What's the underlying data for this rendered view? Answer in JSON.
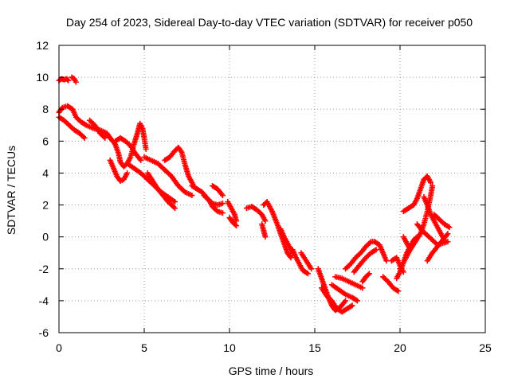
{
  "chart_data": {
    "type": "scatter",
    "title": "Day 254 of 2023, Sidereal Day-to-day VTEC variation (SDTVAR) for receiver p050",
    "xlabel": "GPS time / hours",
    "ylabel": "SDTVAR / TECUs",
    "xlim": [
      0,
      25
    ],
    "ylim": [
      -6,
      12
    ],
    "x_ticks": [
      0,
      5,
      10,
      15,
      20,
      25
    ],
    "x_tick_labels": [
      "0",
      "5",
      "10",
      "15",
      "20",
      "25"
    ],
    "y_ticks": [
      -6,
      -4,
      -2,
      0,
      2,
      4,
      6,
      8,
      10,
      12
    ],
    "y_tick_labels": [
      "-6",
      "-4",
      "-2",
      "0",
      "2",
      "4",
      "6",
      "8",
      "10",
      "12"
    ],
    "grid": true,
    "marker": "plus",
    "colors": {
      "series": "#ff0000",
      "grid": "#a0a0a0",
      "axis": "#000000"
    },
    "series": [
      {
        "name": "SDTVAR",
        "tracks": [
          [
            [
              0.0,
              9.8
            ],
            [
              0.15,
              9.9
            ],
            [
              0.3,
              9.85
            ],
            [
              0.45,
              9.9
            ],
            [
              0.55,
              9.8
            ]
          ],
          [
            [
              0.75,
              10.0
            ],
            [
              0.9,
              9.9
            ],
            [
              1.0,
              9.7
            ]
          ],
          [
            [
              0.0,
              7.8
            ],
            [
              0.2,
              8.1
            ],
            [
              0.5,
              8.2
            ],
            [
              0.8,
              8.0
            ],
            [
              1.0,
              7.5
            ],
            [
              1.3,
              7.2
            ],
            [
              1.6,
              7.0
            ],
            [
              2.0,
              6.8
            ],
            [
              2.4,
              6.7
            ],
            [
              2.8,
              6.5
            ],
            [
              3.0,
              6.2
            ]
          ],
          [
            [
              0.0,
              7.5
            ],
            [
              0.3,
              7.3
            ],
            [
              0.6,
              7.0
            ],
            [
              0.9,
              6.7
            ],
            [
              1.2,
              6.5
            ],
            [
              1.5,
              6.2
            ]
          ],
          [
            [
              1.8,
              7.3
            ],
            [
              2.1,
              7.0
            ],
            [
              2.4,
              6.5
            ],
            [
              2.7,
              6.2
            ]
          ],
          [
            [
              3.0,
              6.2
            ],
            [
              3.3,
              5.8
            ],
            [
              3.5,
              5.2
            ],
            [
              3.6,
              4.7
            ],
            [
              3.8,
              4.4
            ],
            [
              4.0,
              4.6
            ],
            [
              4.2,
              5.0
            ],
            [
              4.4,
              5.8
            ],
            [
              4.6,
              6.5
            ],
            [
              4.75,
              7.1
            ],
            [
              4.9,
              6.8
            ],
            [
              5.0,
              6.2
            ],
            [
              5.1,
              5.5
            ]
          ],
          [
            [
              3.0,
              4.8
            ],
            [
              3.2,
              4.3
            ],
            [
              3.4,
              3.8
            ],
            [
              3.6,
              3.5
            ],
            [
              3.8,
              3.6
            ],
            [
              4.0,
              4.0
            ]
          ],
          [
            [
              3.3,
              6.0
            ],
            [
              3.6,
              6.2
            ],
            [
              3.9,
              6.0
            ],
            [
              4.2,
              5.7
            ],
            [
              4.5,
              5.2
            ],
            [
              4.8,
              4.8
            ]
          ],
          [
            [
              4.0,
              4.6
            ],
            [
              4.4,
              4.3
            ],
            [
              4.8,
              4.0
            ],
            [
              5.2,
              3.6
            ],
            [
              5.6,
              3.2
            ],
            [
              6.0,
              2.8
            ],
            [
              6.4,
              2.5
            ],
            [
              6.8,
              2.2
            ]
          ],
          [
            [
              5.0,
              5.0
            ],
            [
              5.4,
              4.8
            ],
            [
              5.8,
              4.6
            ],
            [
              6.2,
              4.2
            ],
            [
              6.6,
              3.8
            ],
            [
              7.0,
              3.2
            ],
            [
              7.4,
              2.8
            ],
            [
              7.8,
              2.6
            ]
          ],
          [
            [
              5.2,
              4.0
            ],
            [
              5.5,
              3.5
            ],
            [
              5.8,
              3.0
            ],
            [
              6.1,
              2.6
            ],
            [
              6.4,
              2.2
            ],
            [
              6.8,
              1.8
            ]
          ],
          [
            [
              6.2,
              4.8
            ],
            [
              6.5,
              5.0
            ],
            [
              6.8,
              5.4
            ],
            [
              7.0,
              5.6
            ],
            [
              7.2,
              5.3
            ],
            [
              7.4,
              4.5
            ],
            [
              7.6,
              3.8
            ],
            [
              7.9,
              3.2
            ]
          ],
          [
            [
              7.8,
              3.2
            ],
            [
              8.1,
              3.0
            ],
            [
              8.4,
              2.8
            ],
            [
              8.7,
              2.4
            ],
            [
              9.0,
              2.1
            ],
            [
              9.3,
              2.0
            ],
            [
              9.6,
              2.1
            ]
          ],
          [
            [
              8.5,
              2.6
            ],
            [
              8.8,
              2.3
            ],
            [
              9.0,
              1.9
            ],
            [
              9.3,
              1.6
            ],
            [
              9.6,
              1.5
            ]
          ],
          [
            [
              9.0,
              3.2
            ],
            [
              9.3,
              3.0
            ],
            [
              9.6,
              2.6
            ]
          ],
          [
            [
              9.9,
              2.2
            ],
            [
              10.1,
              1.8
            ],
            [
              10.3,
              1.4
            ],
            [
              10.4,
              1.0
            ]
          ],
          [
            [
              10.0,
              1.2
            ],
            [
              10.2,
              0.9
            ],
            [
              10.4,
              0.7
            ]
          ],
          [
            [
              11.0,
              1.8
            ],
            [
              11.3,
              1.9
            ],
            [
              11.6,
              1.7
            ],
            [
              11.9,
              1.4
            ],
            [
              12.1,
              1.0
            ]
          ],
          [
            [
              11.9,
              0.8
            ],
            [
              12.0,
              0.4
            ],
            [
              12.1,
              0.0
            ]
          ],
          [
            [
              12.0,
              2.0
            ],
            [
              12.2,
              2.2
            ],
            [
              12.5,
              1.6
            ],
            [
              12.8,
              0.8
            ],
            [
              13.0,
              0.2
            ],
            [
              13.2,
              -0.4
            ],
            [
              13.4,
              -1.0
            ],
            [
              13.6,
              -1.3
            ]
          ],
          [
            [
              13.0,
              0.5
            ],
            [
              13.2,
              0.0
            ],
            [
              13.5,
              -0.6
            ],
            [
              13.7,
              -1.0
            ]
          ],
          [
            [
              13.7,
              -0.8
            ],
            [
              13.9,
              -1.3
            ],
            [
              14.1,
              -1.7
            ],
            [
              14.3,
              -2.1
            ],
            [
              14.6,
              -2.3
            ]
          ],
          [
            [
              14.2,
              -1.0
            ],
            [
              14.5,
              -1.5
            ],
            [
              14.8,
              -2.0
            ]
          ],
          [
            [
              15.2,
              -2.0
            ],
            [
              15.4,
              -2.6
            ],
            [
              15.6,
              -3.2
            ],
            [
              15.8,
              -3.8
            ],
            [
              16.0,
              -4.3
            ],
            [
              16.2,
              -4.6
            ],
            [
              16.5,
              -4.4
            ],
            [
              16.8,
              -4.0
            ]
          ],
          [
            [
              15.4,
              -3.2
            ],
            [
              15.7,
              -3.7
            ],
            [
              16.0,
              -4.0
            ],
            [
              16.3,
              -4.5
            ],
            [
              16.6,
              -4.7
            ],
            [
              16.9,
              -4.5
            ],
            [
              17.2,
              -4.3
            ]
          ],
          [
            [
              16.0,
              -3.0
            ],
            [
              16.4,
              -3.3
            ],
            [
              16.8,
              -3.6
            ],
            [
              17.2,
              -3.8
            ],
            [
              17.5,
              -4.0
            ]
          ],
          [
            [
              16.2,
              -2.5
            ],
            [
              16.6,
              -2.6
            ],
            [
              17.0,
              -2.8
            ],
            [
              17.4,
              -3.0
            ],
            [
              17.8,
              -3.2
            ]
          ],
          [
            [
              16.8,
              -2.0
            ],
            [
              17.1,
              -1.7
            ],
            [
              17.4,
              -1.3
            ],
            [
              17.7,
              -1.0
            ],
            [
              18.0,
              -0.6
            ],
            [
              18.3,
              -0.3
            ],
            [
              18.5,
              -0.3
            ],
            [
              18.8,
              -0.5
            ],
            [
              19.0,
              -1.0
            ],
            [
              19.2,
              -1.5
            ]
          ],
          [
            [
              17.3,
              -2.2
            ],
            [
              17.6,
              -1.8
            ],
            [
              18.0,
              -1.3
            ],
            [
              18.3,
              -1.0
            ],
            [
              18.6,
              -0.8
            ]
          ],
          [
            [
              17.8,
              -2.8
            ],
            [
              18.0,
              -2.5
            ],
            [
              18.2,
              -2.3
            ]
          ],
          [
            [
              19.0,
              -2.5
            ],
            [
              19.3,
              -2.8
            ],
            [
              19.6,
              -3.2
            ],
            [
              19.9,
              -3.4
            ]
          ],
          [
            [
              19.5,
              -1.5
            ],
            [
              19.8,
              -1.3
            ],
            [
              20.0,
              -1.8
            ],
            [
              20.2,
              -2.2
            ]
          ],
          [
            [
              19.8,
              -2.6
            ],
            [
              20.0,
              -2.2
            ],
            [
              20.2,
              -1.6
            ],
            [
              20.4,
              -1.0
            ],
            [
              20.6,
              -0.6
            ],
            [
              20.8,
              -0.2
            ],
            [
              21.0,
              0.0
            ]
          ],
          [
            [
              20.0,
              -2.0
            ],
            [
              20.3,
              -1.4
            ],
            [
              20.6,
              -0.8
            ],
            [
              20.9,
              -0.3
            ],
            [
              21.2,
              0.2
            ],
            [
              21.4,
              0.8
            ],
            [
              21.6,
              1.6
            ],
            [
              21.8,
              2.6
            ],
            [
              21.9,
              3.2
            ]
          ],
          [
            [
              20.2,
              1.6
            ],
            [
              20.5,
              1.8
            ],
            [
              20.8,
              2.0
            ],
            [
              21.0,
              2.4
            ],
            [
              21.2,
              3.0
            ],
            [
              21.4,
              3.6
            ],
            [
              21.6,
              3.8
            ],
            [
              21.8,
              3.4
            ]
          ],
          [
            [
              21.4,
              2.5
            ],
            [
              21.6,
              2.0
            ],
            [
              21.8,
              1.4
            ],
            [
              22.0,
              1.0
            ],
            [
              22.2,
              0.6
            ],
            [
              22.4,
              0.2
            ],
            [
              22.6,
              -0.2
            ]
          ],
          [
            [
              21.0,
              0.8
            ],
            [
              21.3,
              0.4
            ],
            [
              21.6,
              0.1
            ],
            [
              21.9,
              -0.2
            ],
            [
              22.2,
              -0.5
            ],
            [
              22.5,
              -0.4
            ],
            [
              22.8,
              -0.3
            ]
          ],
          [
            [
              22.0,
              1.4
            ],
            [
              22.3,
              1.1
            ],
            [
              22.6,
              0.8
            ],
            [
              22.9,
              0.6
            ]
          ],
          [
            [
              21.6,
              -1.5
            ],
            [
              21.9,
              -1.0
            ],
            [
              22.2,
              -0.6
            ],
            [
              22.5,
              -0.2
            ],
            [
              22.8,
              0.2
            ]
          ],
          [
            [
              20.2,
              0.0
            ],
            [
              20.4,
              -0.4
            ],
            [
              20.6,
              -0.8
            ]
          ]
        ]
      }
    ]
  }
}
